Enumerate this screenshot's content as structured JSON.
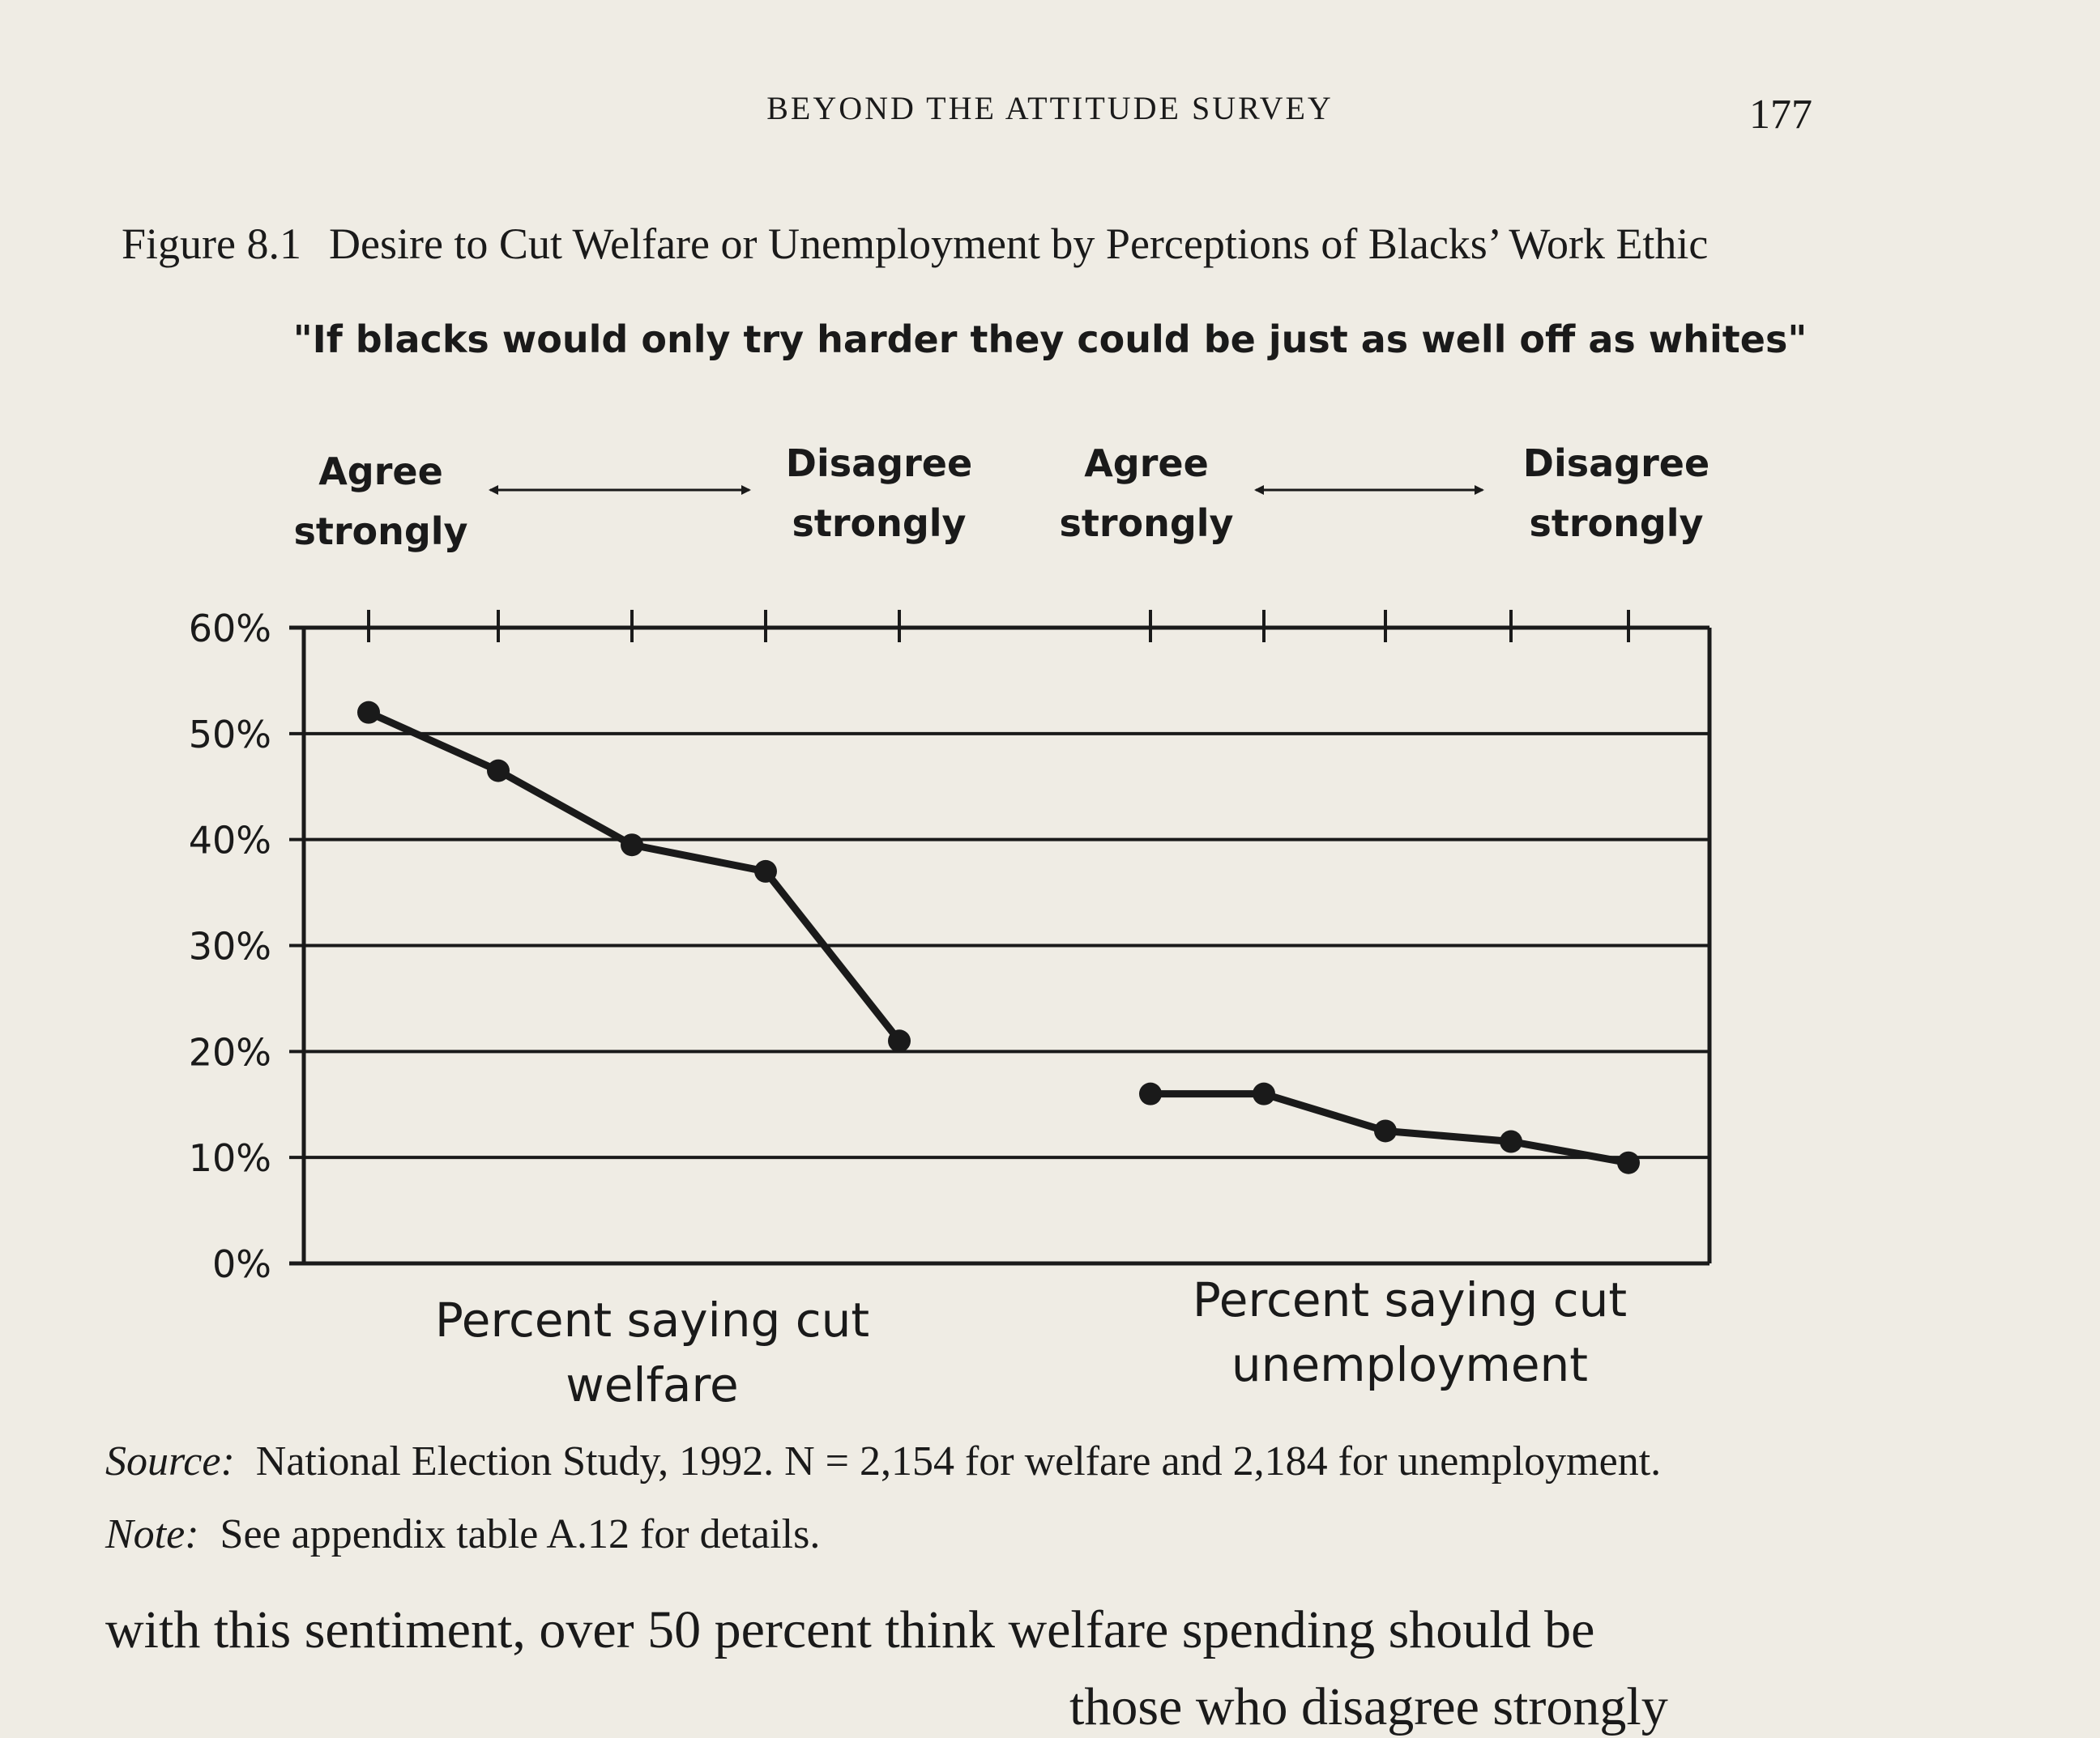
{
  "page": {
    "running_head": "BEYOND THE ATTITUDE SURVEY",
    "page_number": "177",
    "figure_number": "Figure 8.1",
    "figure_caption": "Desire to Cut Welfare or Unemployment by Perceptions of Blacks’ Work Ethic",
    "source_label": "Source:",
    "source_text": "National Election Study, 1992. N = 2,154 for welfare and 2,184 for unemployment.",
    "note_label": "Note:",
    "note_text": "See appendix table A.12 for details.",
    "body_line": "with this sentiment, over 50 percent think welfare spending should be",
    "body_line_2": "those who disagree strongly"
  },
  "chart_data": {
    "type": "line",
    "title": "\"If blacks would only try harder they could be just as well off as whites\"",
    "scale_labels": [
      {
        "agree": "Agree strongly",
        "disagree": "Disagree strongly"
      },
      {
        "agree": "Agree strongly",
        "disagree": "Disagree strongly"
      }
    ],
    "y_ticks": [
      "60%",
      "50%",
      "40%",
      "30%",
      "20%",
      "10%",
      "0%"
    ],
    "ylim": [
      0,
      60
    ],
    "grid": true,
    "series": [
      {
        "name": "Percent saying cut welfare",
        "values": [
          52,
          46.5,
          39.5,
          37,
          21
        ]
      },
      {
        "name": "Percent saying cut unemployment",
        "values": [
          16,
          16,
          12.5,
          11.5,
          9.5
        ]
      }
    ],
    "colors": {
      "line": "#1a1a1a",
      "paper": "#efece4"
    }
  }
}
